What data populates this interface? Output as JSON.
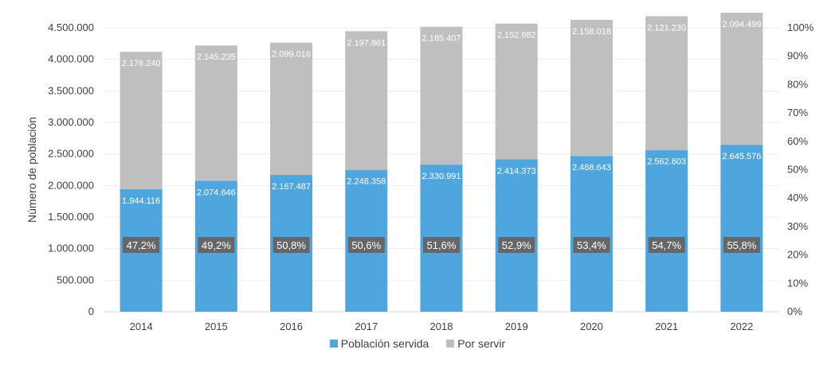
{
  "chart_data": {
    "type": "bar",
    "stacked": true,
    "categories": [
      "2014",
      "2015",
      "2016",
      "2017",
      "2018",
      "2019",
      "2020",
      "2021",
      "2022"
    ],
    "series": [
      {
        "name": "Población servida",
        "color": "#4FA6DF",
        "values": [
          1944116,
          2074646,
          2167487,
          2248358,
          2330991,
          2414373,
          2468643,
          2562803,
          2645576
        ],
        "labels": [
          "1.944.116",
          "2.074.646",
          "2.167.487",
          "2.248.358",
          "2.330.991",
          "2.414.373",
          "2.468.643",
          "2.562.803",
          "2.645.576"
        ]
      },
      {
        "name": "Por servir",
        "color": "#BFBFBF",
        "values": [
          2176240,
          2145235,
          2099016,
          2197861,
          2185407,
          2152982,
          2158018,
          2121230,
          2094499
        ],
        "labels": [
          "2.176.240",
          "2.145.235",
          "2.099.016",
          "2.197.861",
          "2.185.407",
          "2.152.982",
          "2.158.018",
          "2.121.230",
          "2.094.499"
        ]
      }
    ],
    "percentages": {
      "values": [
        47.2,
        49.2,
        50.8,
        50.6,
        51.6,
        52.9,
        53.4,
        54.7,
        55.8
      ],
      "labels": [
        "47,2%",
        "49,2%",
        "50,8%",
        "50,6%",
        "51,6%",
        "52,9%",
        "53,4%",
        "54,7%",
        "55,8%"
      ],
      "label_bg": "#666666"
    },
    "ylabel": "Número de población",
    "ylim": [
      0,
      4500000
    ],
    "y_ticks": [
      0,
      500000,
      1000000,
      1500000,
      2000000,
      2500000,
      3000000,
      3500000,
      4000000,
      4500000
    ],
    "y_tick_labels": [
      "0",
      "500.000",
      "1.000.000",
      "1.500.000",
      "2.000.000",
      "2.500.000",
      "3.000.000",
      "3.500.000",
      "4.000.000",
      "4.500.000"
    ],
    "y2lim": [
      0,
      100
    ],
    "y2_tick_labels": [
      "0%",
      "10%",
      "20%",
      "30%",
      "40%",
      "50%",
      "60%",
      "70%",
      "80%",
      "90%",
      "100%"
    ],
    "grid": true,
    "legend_position": "bottom"
  }
}
